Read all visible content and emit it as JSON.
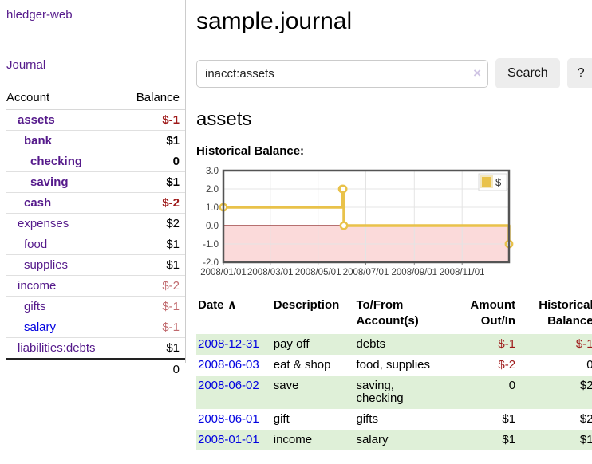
{
  "sidebar": {
    "app_title": "hledger-web",
    "nav": {
      "journal_label": "Journal"
    },
    "accounts_table": {
      "col_account": "Account",
      "col_balance": "Balance",
      "rows": [
        {
          "name": "assets",
          "indent": 1,
          "bold": true,
          "balance": "$-1",
          "neg": "strong"
        },
        {
          "name": "bank",
          "indent": 2,
          "bold": true,
          "balance": "$1",
          "neg": "none"
        },
        {
          "name": "checking",
          "indent": 3,
          "bold": true,
          "balance": "0",
          "neg": "none"
        },
        {
          "name": "saving",
          "indent": 3,
          "bold": true,
          "balance": "$1",
          "neg": "none"
        },
        {
          "name": "cash",
          "indent": 2,
          "bold": true,
          "balance": "$-2",
          "neg": "strong"
        },
        {
          "name": "expenses",
          "indent": 1,
          "bold": false,
          "balance": "$2",
          "neg": "none"
        },
        {
          "name": "food",
          "indent": 2,
          "bold": false,
          "balance": "$1",
          "neg": "none"
        },
        {
          "name": "supplies",
          "indent": 2,
          "bold": false,
          "balance": "$1",
          "neg": "none"
        },
        {
          "name": "income",
          "indent": 1,
          "bold": false,
          "balance": "$-2",
          "neg": "soft"
        },
        {
          "name": "gifts",
          "indent": 2,
          "bold": false,
          "balance": "$-1",
          "neg": "soft"
        },
        {
          "name": "salary",
          "indent": 2,
          "bold": false,
          "balance": "$-1",
          "neg": "soft",
          "link": "blue"
        },
        {
          "name": "liabilities:debts",
          "indent": 1,
          "bold": false,
          "balance": "$1",
          "neg": "none"
        }
      ],
      "total": "0"
    }
  },
  "header": {
    "title": "sample.journal"
  },
  "search": {
    "value": "inacct:assets",
    "clear_icon": "×",
    "search_label": "Search",
    "help_label": "?"
  },
  "main": {
    "account_heading": "assets",
    "chart_label": "Historical Balance:"
  },
  "chart_data": {
    "type": "line",
    "step": true,
    "title": "Historical Balance",
    "series": [
      {
        "name": "$",
        "color": "#e9c24a",
        "points": [
          [
            "2008/01/01",
            1
          ],
          [
            "2008/06/01",
            2
          ],
          [
            "2008/06/02",
            2
          ],
          [
            "2008/06/03",
            0
          ],
          [
            "2008/12/31",
            -1
          ]
        ]
      }
    ],
    "x_ticks": [
      "2008/01/01",
      "2008/03/01",
      "2008/05/01",
      "2008/07/01",
      "2008/09/01",
      "2008/11/01"
    ],
    "y_ticks": [
      "3.0",
      "2.0",
      "1.0",
      "0.0",
      "-1.0",
      "-2.0"
    ],
    "ylim": [
      -2,
      3
    ],
    "x_start": "2008/01/01",
    "x_days": 365,
    "grid": true,
    "negative_region_color": "#fbdada",
    "zero_line_color": "#8b1a1a",
    "legend": {
      "label": "$",
      "position": "top-right"
    }
  },
  "transactions": {
    "columns": {
      "date": "Date",
      "sort_icon": "∧",
      "description": "Description",
      "accounts": "To/From Account(s)",
      "amount": "Amount Out/In",
      "balance": "Historical Balance"
    },
    "rows": [
      {
        "date": "2008-12-31",
        "description": "pay off",
        "accounts": "debts",
        "amount": "$-1",
        "amount_neg": true,
        "balance": "$-1",
        "balance_neg": true,
        "shaded": true
      },
      {
        "date": "2008-06-03",
        "description": "eat & shop",
        "accounts": "food, supplies",
        "amount": "$-2",
        "amount_neg": true,
        "balance": "0",
        "balance_neg": false,
        "shaded": false
      },
      {
        "date": "2008-06-02",
        "description": "save",
        "accounts": "saving,\nchecking",
        "amount": "0",
        "amount_neg": false,
        "balance": "$2",
        "balance_neg": false,
        "shaded": true
      },
      {
        "date": "2008-06-01",
        "description": "gift",
        "accounts": "gifts",
        "amount": "$1",
        "amount_neg": false,
        "balance": "$2",
        "balance_neg": false,
        "shaded": false
      },
      {
        "date": "2008-01-01",
        "description": "income",
        "accounts": "salary",
        "amount": "$1",
        "amount_neg": false,
        "balance": "$1",
        "balance_neg": false,
        "shaded": true
      }
    ]
  },
  "colors": {
    "accent_purple": "#551a8b",
    "link_blue": "#0202e0",
    "neg_strong": "#9e1919",
    "neg_soft": "#c0696d",
    "row_green": "#dff0d8",
    "chart_line": "#e9c24a",
    "chart_border": "#545454",
    "grid_line": "#e4e4e4"
  }
}
